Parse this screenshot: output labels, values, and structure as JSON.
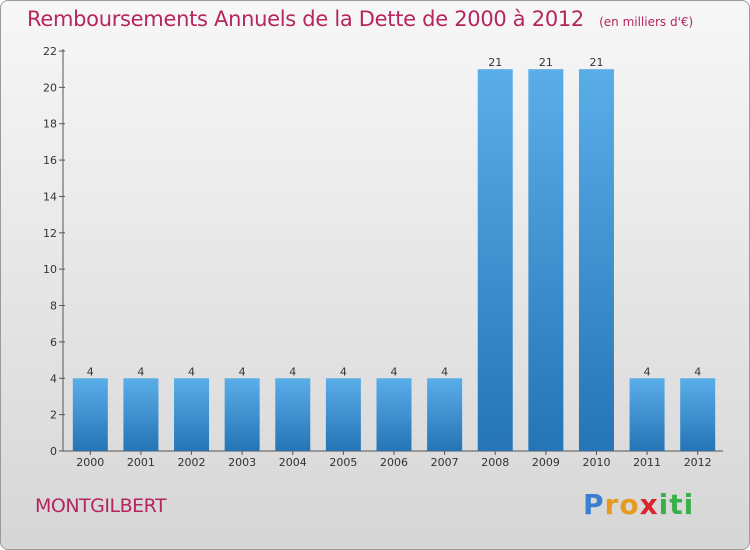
{
  "chart_data": {
    "type": "bar",
    "title": "Remboursements Annuels de la Dette de 2000 à 2012",
    "subtitle": "(en milliers d'€)",
    "categories": [
      "2000",
      "2001",
      "2002",
      "2003",
      "2004",
      "2005",
      "2006",
      "2007",
      "2008",
      "2009",
      "2010",
      "2011",
      "2012"
    ],
    "values": [
      4,
      4,
      4,
      4,
      4,
      4,
      4,
      4,
      21,
      21,
      21,
      4,
      4
    ],
    "ylim": [
      0,
      22
    ],
    "yticks": [
      0,
      2,
      4,
      6,
      8,
      10,
      12,
      14,
      16,
      18,
      20,
      22
    ],
    "grid": false,
    "bar_color": "#3d8fd6"
  },
  "commune": "MONTGILBERT",
  "logo": {
    "letters": [
      "P",
      "r",
      "o",
      "x",
      "i",
      "t",
      "i"
    ],
    "colors": [
      "#3a7fd0",
      "#e89a1e",
      "#e89a1e",
      "#d9262b",
      "#3ab04a",
      "#3ab04a",
      "#3ab04a"
    ]
  }
}
